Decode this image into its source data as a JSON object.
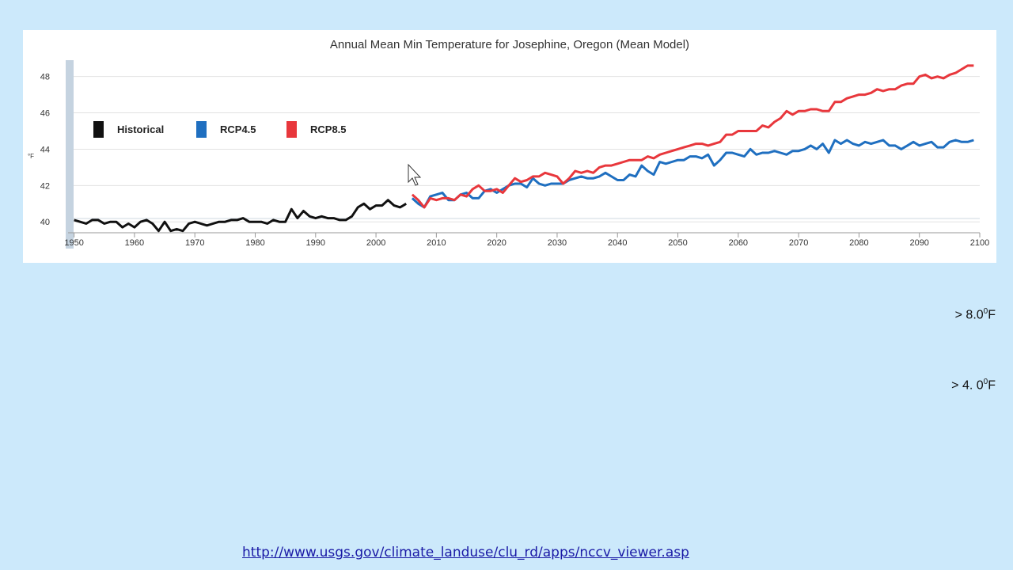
{
  "chart_data": {
    "type": "line",
    "title": "Annual Mean Min Temperature for Josephine, Oregon (Mean Model)",
    "ylabel": "°F",
    "xlabel": "",
    "xlim": [
      1949,
      2100
    ],
    "ylim": [
      39.4,
      48.9
    ],
    "xticks": [
      1950,
      1960,
      1970,
      1980,
      1990,
      2000,
      2010,
      2020,
      2030,
      2040,
      2050,
      2060,
      2070,
      2080,
      2090,
      2100
    ],
    "yticks": [
      40,
      42,
      44,
      46,
      48
    ],
    "grid": "horizontal",
    "legend": "top-left",
    "series": [
      {
        "name": "Historical",
        "color": "#111111",
        "x": [
          1950,
          1951,
          1952,
          1953,
          1954,
          1955,
          1956,
          1957,
          1958,
          1959,
          1960,
          1961,
          1962,
          1963,
          1964,
          1965,
          1966,
          1967,
          1968,
          1969,
          1970,
          1971,
          1972,
          1973,
          1974,
          1975,
          1976,
          1977,
          1978,
          1979,
          1980,
          1981,
          1982,
          1983,
          1984,
          1985,
          1986,
          1987,
          1988,
          1989,
          1990,
          1991,
          1992,
          1993,
          1994,
          1995,
          1996,
          1997,
          1998,
          1999,
          2000,
          2001,
          2002,
          2003,
          2004,
          2005
        ],
        "y": [
          40.1,
          40.0,
          39.9,
          40.1,
          40.1,
          39.9,
          40.0,
          40.0,
          39.7,
          39.9,
          39.7,
          40.0,
          40.1,
          39.9,
          39.5,
          40.0,
          39.5,
          39.6,
          39.5,
          39.9,
          40.0,
          39.9,
          39.8,
          39.9,
          40.0,
          40.0,
          40.1,
          40.1,
          40.2,
          40.0,
          40.0,
          40.0,
          39.9,
          40.1,
          40.0,
          40.0,
          40.7,
          40.2,
          40.6,
          40.3,
          40.2,
          40.3,
          40.2,
          40.2,
          40.1,
          40.1,
          40.3,
          40.8,
          41.0,
          40.7,
          40.9,
          40.9,
          41.2,
          40.9,
          40.8,
          41.0
        ]
      },
      {
        "name": "RCP4.5",
        "color": "#1f6fc0",
        "x": [
          2006,
          2007,
          2008,
          2009,
          2010,
          2011,
          2012,
          2013,
          2014,
          2015,
          2016,
          2017,
          2018,
          2019,
          2020,
          2021,
          2022,
          2023,
          2024,
          2025,
          2026,
          2027,
          2028,
          2029,
          2030,
          2031,
          2032,
          2033,
          2034,
          2035,
          2036,
          2037,
          2038,
          2039,
          2040,
          2041,
          2042,
          2043,
          2044,
          2045,
          2046,
          2047,
          2048,
          2049,
          2050,
          2051,
          2052,
          2053,
          2054,
          2055,
          2056,
          2057,
          2058,
          2059,
          2060,
          2061,
          2062,
          2063,
          2064,
          2065,
          2066,
          2067,
          2068,
          2069,
          2070,
          2071,
          2072,
          2073,
          2074,
          2075,
          2076,
          2077,
          2078,
          2079,
          2080,
          2081,
          2082,
          2083,
          2084,
          2085,
          2086,
          2087,
          2088,
          2089,
          2090,
          2091,
          2092,
          2093,
          2094,
          2095,
          2096,
          2097,
          2098,
          2099
        ],
        "y": [
          41.3,
          41.0,
          40.8,
          41.4,
          41.5,
          41.6,
          41.2,
          41.2,
          41.5,
          41.6,
          41.3,
          41.3,
          41.7,
          41.8,
          41.6,
          41.8,
          42.0,
          42.1,
          42.1,
          41.9,
          42.4,
          42.1,
          42.0,
          42.1,
          42.1,
          42.1,
          42.3,
          42.4,
          42.5,
          42.4,
          42.4,
          42.5,
          42.7,
          42.5,
          42.3,
          42.3,
          42.6,
          42.5,
          43.1,
          42.8,
          42.6,
          43.3,
          43.2,
          43.3,
          43.4,
          43.4,
          43.6,
          43.6,
          43.5,
          43.7,
          43.1,
          43.4,
          43.8,
          43.8,
          43.7,
          43.6,
          44.0,
          43.7,
          43.8,
          43.8,
          43.9,
          43.8,
          43.7,
          43.9,
          43.9,
          44.0,
          44.2,
          44.0,
          44.3,
          43.8,
          44.5,
          44.3,
          44.5,
          44.3,
          44.2,
          44.4,
          44.3,
          44.4,
          44.5,
          44.2,
          44.2,
          44.0,
          44.2,
          44.4,
          44.2,
          44.3,
          44.4,
          44.1,
          44.1,
          44.4,
          44.5,
          44.4,
          44.4,
          44.5
        ]
      },
      {
        "name": "RCP8.5",
        "color": "#e8373c",
        "x": [
          2006,
          2007,
          2008,
          2009,
          2010,
          2011,
          2012,
          2013,
          2014,
          2015,
          2016,
          2017,
          2018,
          2019,
          2020,
          2021,
          2022,
          2023,
          2024,
          2025,
          2026,
          2027,
          2028,
          2029,
          2030,
          2031,
          2032,
          2033,
          2034,
          2035,
          2036,
          2037,
          2038,
          2039,
          2040,
          2041,
          2042,
          2043,
          2044,
          2045,
          2046,
          2047,
          2048,
          2049,
          2050,
          2051,
          2052,
          2053,
          2054,
          2055,
          2056,
          2057,
          2058,
          2059,
          2060,
          2061,
          2062,
          2063,
          2064,
          2065,
          2066,
          2067,
          2068,
          2069,
          2070,
          2071,
          2072,
          2073,
          2074,
          2075,
          2076,
          2077,
          2078,
          2079,
          2080,
          2081,
          2082,
          2083,
          2084,
          2085,
          2086,
          2087,
          2088,
          2089,
          2090,
          2091,
          2092,
          2093,
          2094,
          2095,
          2096,
          2097,
          2098,
          2099
        ],
        "y": [
          41.5,
          41.2,
          40.8,
          41.3,
          41.2,
          41.3,
          41.3,
          41.2,
          41.5,
          41.4,
          41.8,
          42.0,
          41.7,
          41.7,
          41.8,
          41.6,
          42.0,
          42.4,
          42.2,
          42.3,
          42.5,
          42.5,
          42.7,
          42.6,
          42.5,
          42.1,
          42.4,
          42.8,
          42.7,
          42.8,
          42.7,
          43.0,
          43.1,
          43.1,
          43.2,
          43.3,
          43.4,
          43.4,
          43.4,
          43.6,
          43.5,
          43.7,
          43.8,
          43.9,
          44.0,
          44.1,
          44.2,
          44.3,
          44.3,
          44.2,
          44.3,
          44.4,
          44.8,
          44.8,
          45.0,
          45.0,
          45.0,
          45.0,
          45.3,
          45.2,
          45.5,
          45.7,
          46.1,
          45.9,
          46.1,
          46.1,
          46.2,
          46.2,
          46.1,
          46.1,
          46.6,
          46.6,
          46.8,
          46.9,
          47.0,
          47.0,
          47.1,
          47.3,
          47.2,
          47.3,
          47.3,
          47.5,
          47.6,
          47.6,
          48.0,
          48.1,
          47.9,
          48.0,
          47.9,
          48.1,
          48.2,
          48.4,
          48.6,
          48.6
        ]
      }
    ]
  },
  "notes": [
    {
      "text": "> 8.0",
      "sup": "0",
      "unit": "F"
    },
    {
      "text": "> 4. 0",
      "sup": "0",
      "unit": "F"
    }
  ],
  "source_link": "http://www.usgs.gov/climate_landuse/clu_rd/apps/nccv_viewer.asp"
}
